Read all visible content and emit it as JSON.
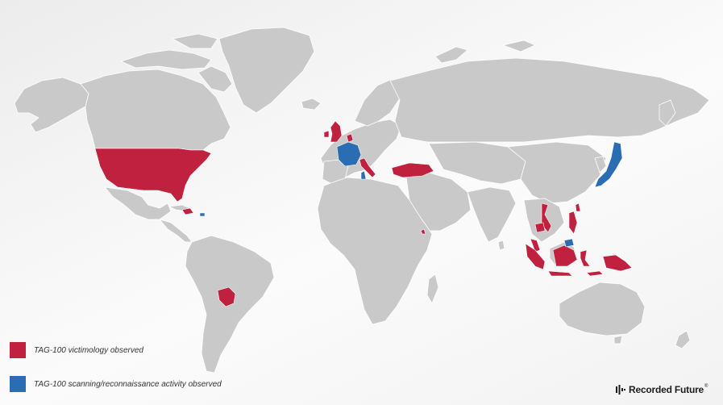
{
  "colors": {
    "background": "#f4f4f4",
    "land": "#c9c9c9",
    "border": "#ffffff",
    "victimology": "#c0213f",
    "scanning": "#2a6db3"
  },
  "legend": {
    "victimology_label": "TAG-100 victimology observed",
    "scanning_label": "TAG-100 scanning/reconnaissance activity observed"
  },
  "brand": {
    "name": "Recorded Future",
    "registered_mark": "®",
    "logo_icon": "recorded-future-logo-icon"
  },
  "map": {
    "projection": "world",
    "victimology_countries": [
      "United States",
      "United Kingdom",
      "Netherlands",
      "Italy",
      "Turkey",
      "Dominican Republic",
      "Paraguay",
      "Djibouti",
      "Vietnam",
      "Cambodia",
      "Taiwan",
      "Philippines",
      "Malaysia",
      "Indonesia",
      "Papua New Guinea"
    ],
    "scanning_countries": [
      "France",
      "Japan",
      "Puerto Rico",
      "Brunei",
      "Tunisia",
      "Malaysia (Sabah)"
    ]
  }
}
